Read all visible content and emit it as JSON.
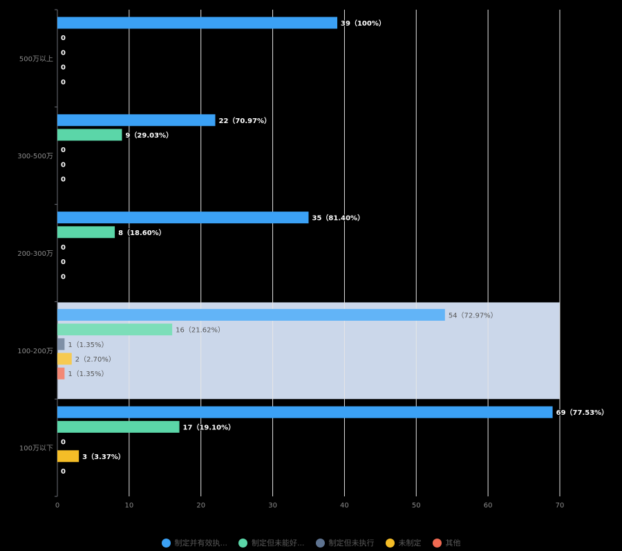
{
  "chart_data": {
    "type": "bar",
    "orientation": "horizontal",
    "categories": [
      "500万以上",
      "300-500万",
      "200-300万",
      "100-200万",
      "100万以下"
    ],
    "highlighted_category": "100-200万",
    "xlim": [
      0,
      70
    ],
    "xticks": [
      "0",
      "10",
      "20",
      "30",
      "40",
      "50",
      "60",
      "70"
    ],
    "legend_position": "bottom",
    "series": [
      {
        "name": "制定并有效执...",
        "color": "#3ba1f5",
        "values": [
          39,
          22,
          35,
          54,
          69
        ],
        "labels": [
          "39（100%）",
          "22（70.97%）",
          "35（81.40%）",
          "54（72.97%）",
          "69（77.53%）"
        ]
      },
      {
        "name": "制定但未能好...",
        "color": "#5bd6a8",
        "values": [
          0,
          9,
          8,
          16,
          17
        ],
        "labels": [
          "0",
          "9（29.03%）",
          "8（18.60%）",
          "16（21.62%）",
          "17（19.10%）"
        ]
      },
      {
        "name": "制定但未执行",
        "color": "#5e7390",
        "values": [
          0,
          0,
          0,
          1,
          0
        ],
        "labels": [
          "0",
          "0",
          "0",
          "1（1.35%）",
          "0"
        ]
      },
      {
        "name": "未制定",
        "color": "#f4bd27",
        "values": [
          0,
          0,
          0,
          2,
          3
        ],
        "labels": [
          "0",
          "0",
          "0",
          "2（2.70%）",
          "3（3.37%）"
        ]
      },
      {
        "name": "其他",
        "color": "#f06a52",
        "values": [
          0,
          0,
          0,
          1,
          0
        ],
        "labels": [
          "0",
          "0",
          "0",
          "1（1.35%）",
          "0"
        ]
      }
    ]
  }
}
